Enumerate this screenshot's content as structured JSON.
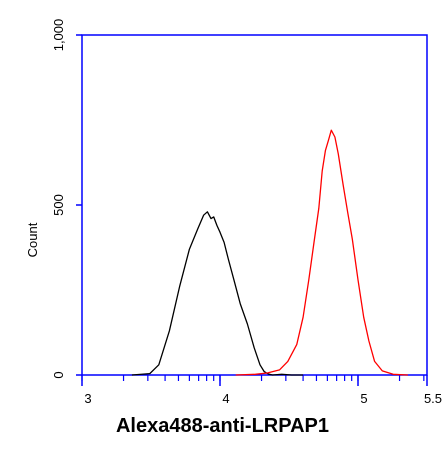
{
  "chart_data": {
    "type": "line",
    "title": "",
    "xlabel": "Alexa488-anti-LRPAP1",
    "ylabel": "Count",
    "x_scale": "log",
    "xlim": [
      1000,
      316228
    ],
    "ylim": [
      0,
      1000
    ],
    "x_tick_labels": [
      {
        "value": 1000,
        "label": "3"
      },
      {
        "value": 10000,
        "label": "4"
      },
      {
        "value": 100000,
        "label": "5"
      },
      {
        "value": 316228,
        "label": "5.5"
      }
    ],
    "y_ticks": [
      {
        "value": 0,
        "label": "0"
      },
      {
        "value": 500,
        "label": "500"
      },
      {
        "value": 1000,
        "label": "1,000"
      }
    ],
    "grid": false,
    "axis_color": "#0000ff",
    "series": [
      {
        "color": "#000000",
        "x": [
          2300,
          3100,
          3600,
          4300,
          5100,
          6000,
          6900,
          7600,
          8100,
          8600,
          9000,
          9500,
          10000,
          10700,
          11500,
          12600,
          14000,
          15800,
          17700,
          19500,
          20900,
          22400,
          24000,
          28000,
          33000,
          40000
        ],
        "y": [
          0,
          4,
          30,
          130,
          260,
          370,
          430,
          470,
          480,
          460,
          465,
          440,
          420,
          390,
          340,
          280,
          210,
          150,
          80,
          30,
          10,
          3,
          0,
          2,
          0,
          0
        ]
      },
      {
        "color": "#ff0000",
        "x": [
          13000,
          18000,
          22000,
          27000,
          31000,
          36000,
          40000,
          44000,
          48000,
          52000,
          55000,
          58000,
          61000,
          64000,
          68000,
          72000,
          78000,
          84000,
          91000,
          100000,
          110000,
          120000,
          132000,
          150000,
          180000,
          230000
        ],
        "y": [
          0,
          2,
          6,
          15,
          40,
          90,
          170,
          280,
          390,
          490,
          600,
          660,
          690,
          720,
          700,
          650,
          560,
          480,
          400,
          280,
          170,
          100,
          40,
          12,
          2,
          0
        ]
      }
    ]
  }
}
